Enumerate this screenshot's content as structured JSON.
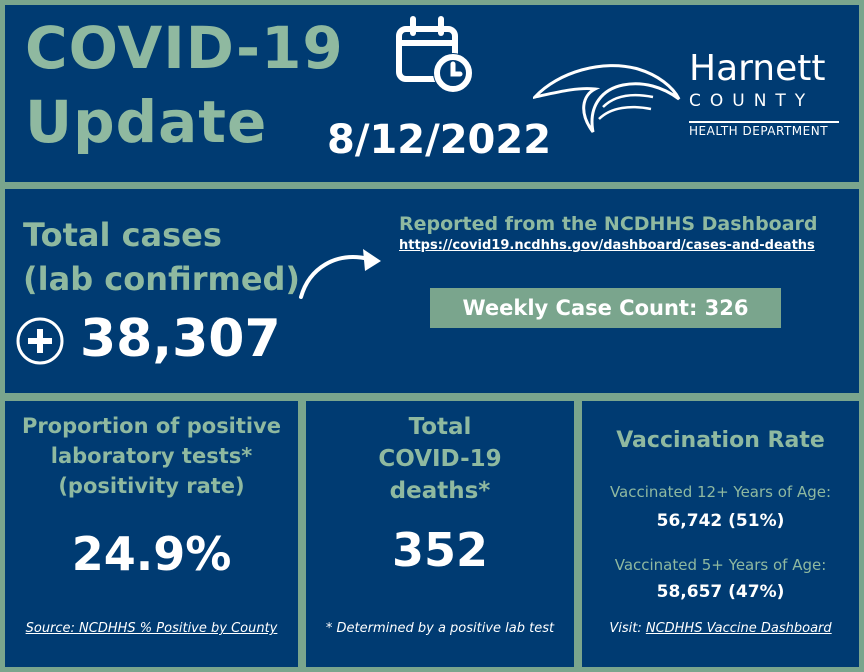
{
  "header": {
    "title_line1": "COVID-19",
    "title_line2": "Update",
    "date": "8/12/2022",
    "calendar_icon": "calendar-clock-icon",
    "logo": {
      "name": "Harnett",
      "county": "COUNTY",
      "dept": "HEALTH DEPARTMENT"
    }
  },
  "cases": {
    "title_line1": "Total cases",
    "title_line2": "(lab confirmed)",
    "total": "38,307",
    "plus_icon": "plus-circle-icon",
    "arrow_icon": "curved-arrow-icon",
    "reported": "Reported from the NCDHHS Dashboard",
    "url": "https://covid19.ncdhhs.gov/dashboard/cases-and-deaths",
    "weekly": "Weekly Case Count: 326"
  },
  "positivity": {
    "line1": "Proportion of positive",
    "line2": "laboratory tests*",
    "line3": "(positivity rate)",
    "value": "24.9%",
    "source": "Source: NCDHHS % Positive by County"
  },
  "deaths": {
    "line1": "Total",
    "line2": "COVID-19",
    "line3": "deaths*",
    "value": "352",
    "note": "* Determined by a positive lab test"
  },
  "vaccination": {
    "title": "Vaccination Rate",
    "label12": "Vaccinated 12+ Years of Age:",
    "value12": "56,742  (51%)",
    "label5": "Vaccinated 5+ Years of Age:",
    "value5": "58,657  (47%)",
    "visit": "Visit:",
    "link": "NCDHHS Vaccine Dashboard"
  }
}
